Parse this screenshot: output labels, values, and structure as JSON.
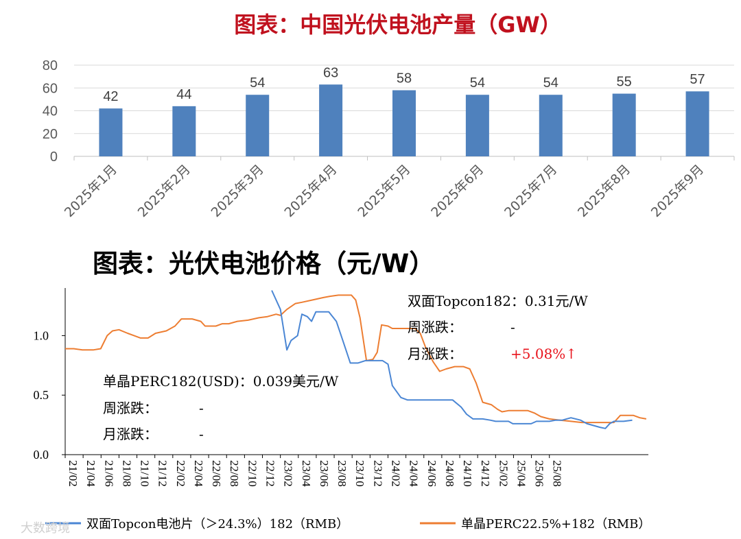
{
  "chart_data": [
    {
      "type": "bar",
      "title": "图表：中国光伏电池产量（GW）",
      "categories": [
        "2025年1月",
        "2025年2月",
        "2025年3月",
        "2025年4月",
        "2025年5月",
        "2025年6月",
        "2025年7月",
        "2025年8月",
        "2025年9月"
      ],
      "values": [
        42,
        44,
        54,
        63,
        58,
        54,
        54,
        55,
        57
      ],
      "data_labels": [
        "42",
        "44",
        "54",
        "63",
        "58",
        "54",
        "54",
        "55",
        "57"
      ],
      "ylim": [
        0,
        80
      ],
      "yticks": [
        "0",
        "20",
        "40",
        "60",
        "80"
      ],
      "bar_color": "#4f81bd",
      "grid": true
    },
    {
      "type": "line",
      "title": "图表：光伏电池价格（元/W）",
      "x_ticks": [
        "21/02",
        "21/04",
        "21/06",
        "21/08",
        "21/10",
        "21/12",
        "22/02",
        "22/04",
        "22/06",
        "22/08",
        "22/10",
        "22/12",
        "23/02",
        "23/04",
        "23/06",
        "23/08",
        "23/10",
        "23/12",
        "24/02",
        "24/04",
        "24/06",
        "24/08",
        "24/10",
        "24/12",
        "25/02",
        "25/04",
        "25/06",
        "25/08"
      ],
      "yticks": [
        "0.0",
        "0.5",
        "1.0"
      ],
      "ylim": [
        0,
        1.4
      ],
      "grid": false,
      "legend_position": "bottom",
      "series": [
        {
          "name": "双面Topcon电池片（＞24.3%）182（RMB）",
          "color": "#4a86d4",
          "points": [
            [
              22.92,
              1.38
            ],
            [
              23.0,
              1.22
            ],
            [
              23.06,
              0.88
            ],
            [
              23.1,
              0.96
            ],
            [
              23.16,
              1.0
            ],
            [
              23.2,
              1.18
            ],
            [
              23.25,
              1.16
            ],
            [
              23.29,
              1.12
            ],
            [
              23.33,
              1.2
            ],
            [
              23.45,
              1.2
            ],
            [
              23.52,
              1.12
            ],
            [
              23.58,
              0.96
            ],
            [
              23.65,
              0.77
            ],
            [
              23.72,
              0.77
            ],
            [
              23.79,
              0.79
            ],
            [
              23.95,
              0.79
            ],
            [
              24.0,
              0.76
            ],
            [
              24.04,
              0.58
            ],
            [
              24.12,
              0.48
            ],
            [
              24.18,
              0.46
            ],
            [
              24.33,
              0.46
            ],
            [
              24.6,
              0.46
            ],
            [
              24.68,
              0.4
            ],
            [
              24.73,
              0.34
            ],
            [
              24.79,
              0.3
            ],
            [
              24.88,
              0.3
            ],
            [
              24.95,
              0.29
            ],
            [
              25.0,
              0.28
            ],
            [
              25.12,
              0.28
            ],
            [
              25.16,
              0.26
            ],
            [
              25.33,
              0.26
            ],
            [
              25.38,
              0.28
            ],
            [
              25.5,
              0.28
            ],
            [
              25.56,
              0.29
            ],
            [
              25.62,
              0.29
            ],
            [
              25.7,
              0.31
            ],
            [
              25.79,
              0.29
            ],
            [
              25.85,
              0.26
            ],
            [
              25.97,
              0.23
            ],
            [
              26.02,
              0.22
            ],
            [
              26.06,
              0.26
            ],
            [
              26.1,
              0.28
            ],
            [
              26.19,
              0.28
            ],
            [
              26.27,
              0.29
            ]
          ]
        },
        {
          "name": "单晶PERC22.5%+182（RMB）",
          "color": "#ed7d31",
          "points": [
            [
              21.0,
              0.89
            ],
            [
              21.08,
              0.89
            ],
            [
              21.16,
              0.88
            ],
            [
              21.26,
              0.88
            ],
            [
              21.33,
              0.89
            ],
            [
              21.39,
              1.0
            ],
            [
              21.44,
              1.04
            ],
            [
              21.5,
              1.05
            ],
            [
              21.58,
              1.02
            ],
            [
              21.64,
              1.0
            ],
            [
              21.7,
              0.98
            ],
            [
              21.77,
              0.98
            ],
            [
              21.84,
              1.02
            ],
            [
              21.94,
              1.04
            ],
            [
              22.02,
              1.08
            ],
            [
              22.08,
              1.14
            ],
            [
              22.18,
              1.14
            ],
            [
              22.26,
              1.12
            ],
            [
              22.3,
              1.08
            ],
            [
              22.4,
              1.08
            ],
            [
              22.46,
              1.1
            ],
            [
              22.52,
              1.1
            ],
            [
              22.6,
              1.12
            ],
            [
              22.7,
              1.13
            ],
            [
              22.8,
              1.15
            ],
            [
              22.88,
              1.16
            ],
            [
              22.96,
              1.18
            ],
            [
              23.0,
              1.17
            ],
            [
              23.06,
              1.22
            ],
            [
              23.14,
              1.27
            ],
            [
              23.2,
              1.28
            ],
            [
              23.3,
              1.3
            ],
            [
              23.4,
              1.32
            ],
            [
              23.46,
              1.33
            ],
            [
              23.54,
              1.34
            ],
            [
              23.6,
              1.34
            ],
            [
              23.66,
              1.34
            ],
            [
              23.7,
              1.3
            ],
            [
              23.74,
              1.15
            ],
            [
              23.8,
              0.79
            ],
            [
              23.86,
              0.8
            ],
            [
              23.9,
              0.86
            ],
            [
              23.94,
              1.09
            ],
            [
              24.0,
              1.08
            ],
            [
              24.04,
              1.06
            ],
            [
              24.25,
              1.06
            ],
            [
              24.3,
              1.02
            ],
            [
              24.35,
              0.9
            ],
            [
              24.42,
              0.78
            ],
            [
              24.48,
              0.7
            ],
            [
              24.54,
              0.72
            ],
            [
              24.62,
              0.74
            ],
            [
              24.7,
              0.74
            ],
            [
              24.76,
              0.72
            ],
            [
              24.82,
              0.6
            ],
            [
              24.88,
              0.44
            ],
            [
              24.96,
              0.42
            ],
            [
              25.02,
              0.38
            ],
            [
              25.06,
              0.36
            ],
            [
              25.12,
              0.37
            ],
            [
              25.3,
              0.37
            ],
            [
              25.36,
              0.35
            ],
            [
              25.42,
              0.32
            ],
            [
              25.5,
              0.3
            ],
            [
              25.6,
              0.29
            ],
            [
              25.7,
              0.28
            ],
            [
              25.8,
              0.27
            ],
            [
              25.9,
              0.27
            ],
            [
              26.0,
              0.27
            ],
            [
              26.1,
              0.27
            ],
            [
              26.16,
              0.33
            ],
            [
              26.28,
              0.33
            ],
            [
              26.34,
              0.31
            ],
            [
              26.4,
              0.3
            ]
          ]
        }
      ]
    }
  ],
  "annotations": {
    "topcon": {
      "label": "双面Topcon182：0.31元/W",
      "weekly_label": "周涨跌：",
      "weekly_value": "-",
      "monthly_label": "月涨跌：",
      "monthly_value": "+5.08%↑"
    },
    "perc": {
      "label": "单晶PERC182(USD)：0.039美元/W",
      "weekly_label": "周涨跌：",
      "weekly_value": "-",
      "monthly_label": "月涨跌：",
      "monthly_value": "-"
    }
  },
  "watermark": "大数跨境"
}
